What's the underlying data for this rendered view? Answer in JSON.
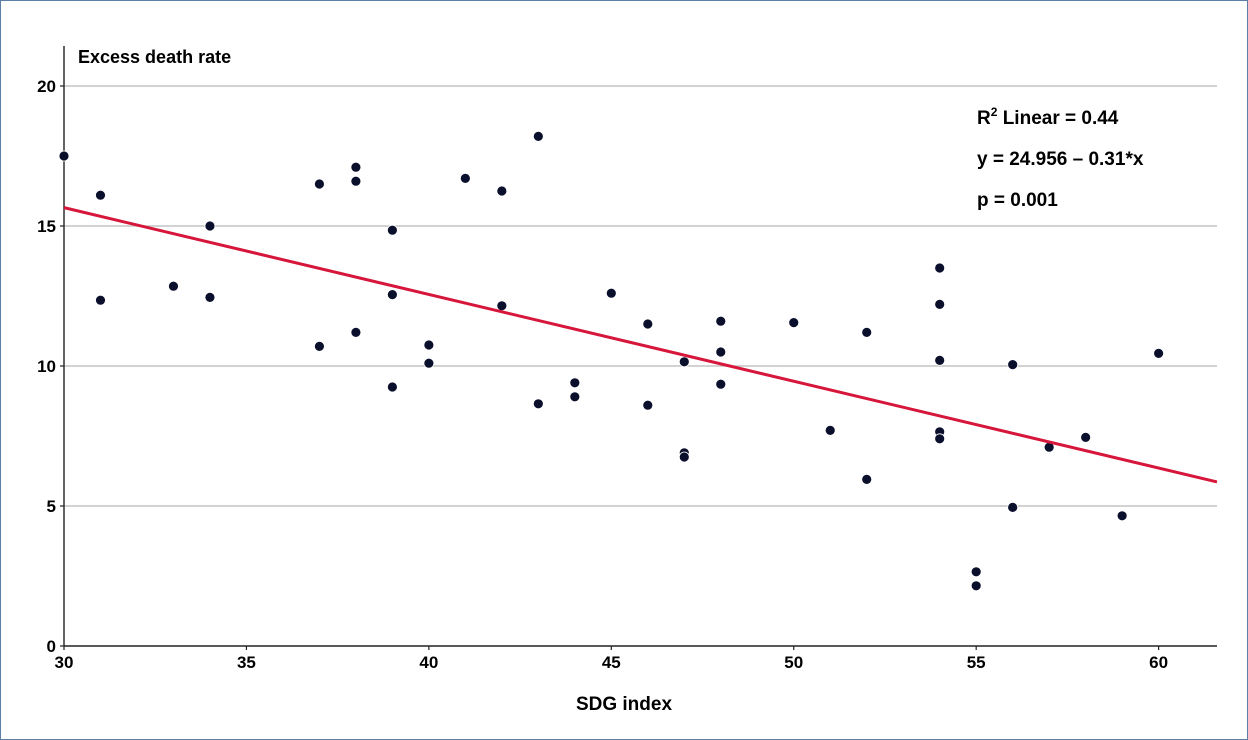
{
  "chart_data": {
    "type": "scatter",
    "ylabel": "Excess death rate",
    "xlabel": "SDG index",
    "xlim": [
      30,
      61.6
    ],
    "ylim": [
      0,
      20
    ],
    "x_ticks": [
      30,
      35,
      40,
      45,
      50,
      55,
      60
    ],
    "y_ticks": [
      0,
      5,
      10,
      15,
      20
    ],
    "grid": "horizontal",
    "point_color": "#0a0f2c",
    "fit_line": {
      "intercept": 24.956,
      "slope": -0.31,
      "color": "#d6163a"
    },
    "annotations": {
      "r2_prefix": "R",
      "r2_sup": "2",
      "r2_suffix": " Linear = 0.44",
      "equation": "y = 24.956 – 0.31*x",
      "p_value": "p = 0.001"
    },
    "points": [
      [
        30,
        17.5
      ],
      [
        31,
        16.1
      ],
      [
        31,
        12.35
      ],
      [
        33,
        12.85
      ],
      [
        34,
        15.0
      ],
      [
        34,
        12.45
      ],
      [
        37,
        16.5
      ],
      [
        37,
        10.7
      ],
      [
        38,
        17.1
      ],
      [
        38,
        16.6
      ],
      [
        38,
        11.2
      ],
      [
        39,
        14.85
      ],
      [
        39,
        12.55
      ],
      [
        39,
        9.25
      ],
      [
        40,
        10.75
      ],
      [
        40,
        10.1
      ],
      [
        41,
        16.7
      ],
      [
        42,
        16.25
      ],
      [
        42,
        12.15
      ],
      [
        43,
        18.2
      ],
      [
        43,
        8.65
      ],
      [
        44,
        9.4
      ],
      [
        44,
        8.9
      ],
      [
        45,
        12.6
      ],
      [
        46,
        11.5
      ],
      [
        46,
        8.6
      ],
      [
        47,
        10.15
      ],
      [
        47,
        6.9
      ],
      [
        47,
        6.75
      ],
      [
        48,
        11.6
      ],
      [
        48,
        10.5
      ],
      [
        48,
        9.35
      ],
      [
        50,
        11.55
      ],
      [
        51,
        7.7
      ],
      [
        52,
        11.2
      ],
      [
        52,
        5.95
      ],
      [
        54,
        13.5
      ],
      [
        54,
        12.2
      ],
      [
        54,
        10.2
      ],
      [
        54,
        7.65
      ],
      [
        54,
        7.4
      ],
      [
        55,
        2.65
      ],
      [
        55,
        2.15
      ],
      [
        56,
        10.05
      ],
      [
        56,
        4.95
      ],
      [
        57,
        7.1
      ],
      [
        58,
        7.45
      ],
      [
        59,
        4.65
      ],
      [
        60,
        10.45
      ]
    ]
  }
}
